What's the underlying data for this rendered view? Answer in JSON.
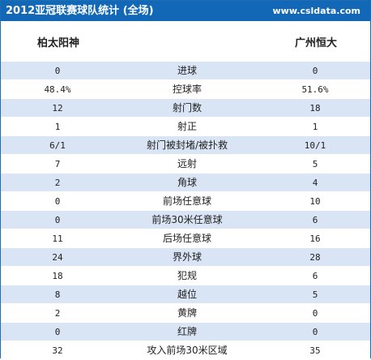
{
  "header": {
    "title": "2012亚冠联赛球队统计 (全场)",
    "site": "www.csldata.com"
  },
  "teams": {
    "home": "柏太阳神",
    "away": "广州恒大"
  },
  "stats": [
    {
      "label": "进球",
      "home": "0",
      "away": "0"
    },
    {
      "label": "控球率",
      "home": "48.4%",
      "away": "51.6%"
    },
    {
      "label": "射门数",
      "home": "12",
      "away": "18"
    },
    {
      "label": "射正",
      "home": "1",
      "away": "1"
    },
    {
      "label": "射门被封堵/被扑救",
      "home": "6/1",
      "away": "10/1"
    },
    {
      "label": "远射",
      "home": "7",
      "away": "5"
    },
    {
      "label": "角球",
      "home": "2",
      "away": "4"
    },
    {
      "label": "前场任意球",
      "home": "0",
      "away": "10"
    },
    {
      "label": "前场30米任意球",
      "home": "0",
      "away": "6"
    },
    {
      "label": "后场任意球",
      "home": "11",
      "away": "16"
    },
    {
      "label": "界外球",
      "home": "24",
      "away": "28"
    },
    {
      "label": "犯规",
      "home": "18",
      "away": "6"
    },
    {
      "label": "越位",
      "home": "8",
      "away": "5"
    },
    {
      "label": "黄牌",
      "home": "2",
      "away": "0"
    },
    {
      "label": "红牌",
      "home": "0",
      "away": "0"
    },
    {
      "label": "攻入前场30米区域",
      "home": "32",
      "away": "35"
    }
  ]
}
